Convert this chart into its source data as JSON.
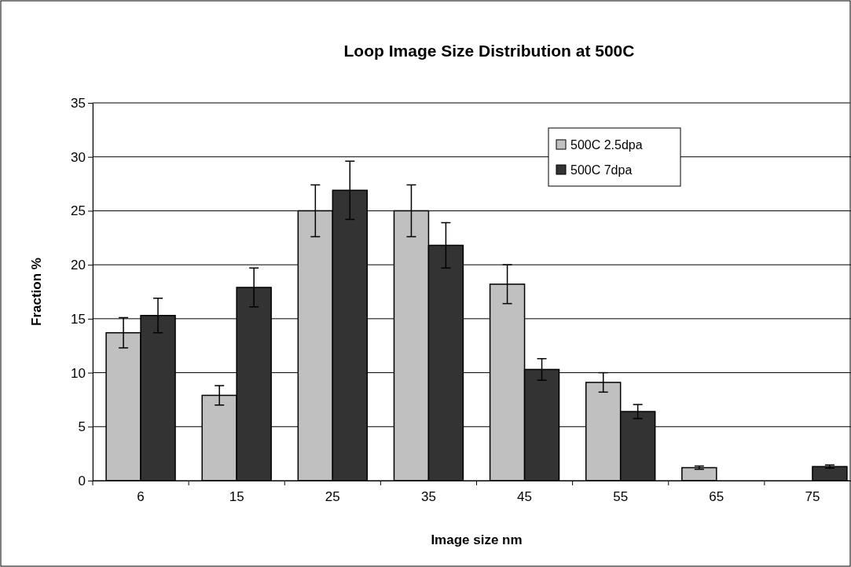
{
  "chart_data": {
    "type": "bar",
    "title": "Loop Image Size Distribution at 500C",
    "xlabel": "Image size nm",
    "ylabel": "Fraction %",
    "categories": [
      "6",
      "15",
      "25",
      "35",
      "45",
      "55",
      "65",
      "75"
    ],
    "series": [
      {
        "name": "500C 2.5dpa",
        "color": "#c0c0c0",
        "values": [
          13.7,
          7.9,
          25,
          25,
          18.2,
          9.1,
          1.2,
          0
        ],
        "errors": [
          1.4,
          0.9,
          2.4,
          2.4,
          1.8,
          0.9,
          0.15,
          null
        ]
      },
      {
        "name": "500C 7dpa",
        "color": "#333333",
        "values": [
          15.3,
          17.9,
          26.9,
          21.8,
          10.3,
          6.4,
          0,
          1.3
        ],
        "errors": [
          1.6,
          1.8,
          2.7,
          2.1,
          1.0,
          0.65,
          null,
          0.15
        ]
      }
    ],
    "ylim": [
      0,
      35
    ],
    "yticks": [
      0,
      5,
      10,
      15,
      20,
      25,
      30,
      35
    ],
    "grid": "y",
    "legend": "top right"
  }
}
